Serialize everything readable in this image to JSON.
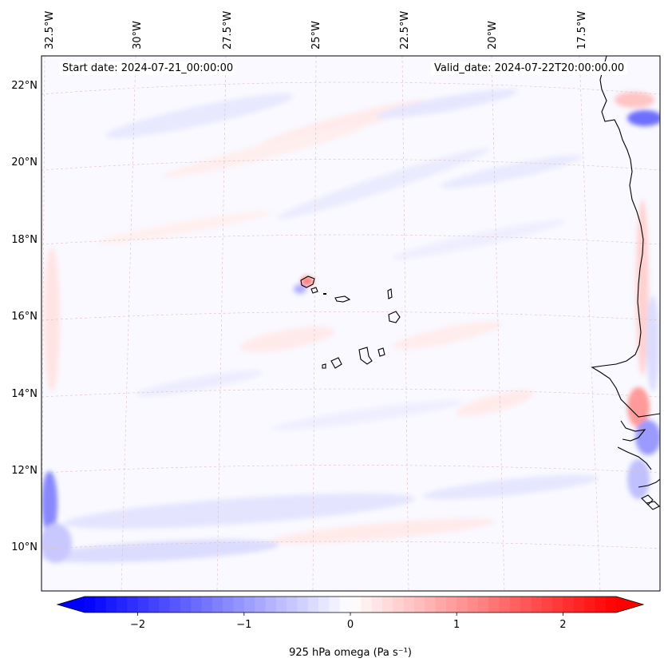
{
  "annotations": {
    "start_date": "Start date: 2024-07-21_00:00:00",
    "valid_date": "Valid_date: 2024-07-22T20:00:00.00"
  },
  "map": {
    "lon_labels": [
      "32.5°W",
      "30°W",
      "27.5°W",
      "25°W",
      "22.5°W",
      "20°W",
      "17.5°W"
    ],
    "lat_labels": [
      "22°N",
      "20°N",
      "18°N",
      "16°N",
      "14°N",
      "12°N",
      "10°N"
    ],
    "field": "925 hPa omega",
    "units": "Pa s⁻¹",
    "colormap": "bwr",
    "coastline_color": "#000000",
    "gridline_color": "#d9b3b3"
  },
  "colorbar": {
    "label": "925 hPa omega (Pa s⁻¹)",
    "ticks": [
      {
        "value": -2,
        "label": "−2"
      },
      {
        "value": -1,
        "label": "−1"
      },
      {
        "value": 0,
        "label": "0"
      },
      {
        "value": 1,
        "label": "1"
      },
      {
        "value": 2,
        "label": "2"
      }
    ],
    "min": -2.5,
    "max": 2.5,
    "extend": "both",
    "low_color": "#0000ff",
    "mid_color": "#ffffff",
    "high_color": "#ff0000"
  }
}
